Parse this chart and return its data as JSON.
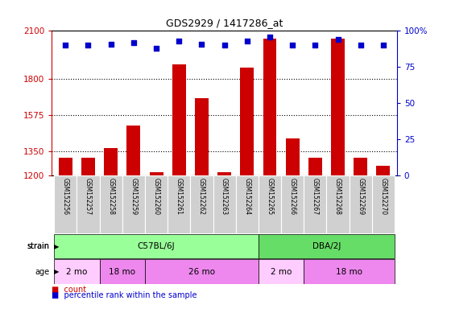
{
  "title": "GDS2929 / 1417286_at",
  "samples": [
    "GSM152256",
    "GSM152257",
    "GSM152258",
    "GSM152259",
    "GSM152260",
    "GSM152261",
    "GSM152262",
    "GSM152263",
    "GSM152264",
    "GSM152265",
    "GSM152266",
    "GSM152267",
    "GSM152268",
    "GSM152269",
    "GSM152270"
  ],
  "counts": [
    1310,
    1310,
    1370,
    1510,
    1220,
    1890,
    1680,
    1220,
    1870,
    2050,
    1430,
    1310,
    2050,
    1310,
    1260
  ],
  "percentile_ranks": [
    90,
    90,
    91,
    92,
    88,
    93,
    91,
    90,
    93,
    96,
    90,
    90,
    94,
    90,
    90
  ],
  "ylim_left": [
    1200,
    2100
  ],
  "yticks_left": [
    1200,
    1350,
    1575,
    1800,
    2100
  ],
  "ylim_right": [
    0,
    100
  ],
  "yticks_right": [
    0,
    25,
    50,
    75,
    100
  ],
  "bar_color": "#cc0000",
  "dot_color": "#0000cc",
  "bg_color": "#ffffff",
  "tick_area_color": "#d0d0d0",
  "strain_groups": [
    {
      "label": "C57BL/6J",
      "start": 0,
      "end": 8,
      "color": "#99ff99"
    },
    {
      "label": "DBA/2J",
      "start": 9,
      "end": 14,
      "color": "#66dd66"
    }
  ],
  "age_groups": [
    {
      "label": "2 mo",
      "start": 0,
      "end": 1,
      "color": "#ffccff"
    },
    {
      "label": "18 mo",
      "start": 2,
      "end": 3,
      "color": "#ee88ee"
    },
    {
      "label": "26 mo",
      "start": 4,
      "end": 8,
      "color": "#ee88ee"
    },
    {
      "label": "2 mo",
      "start": 9,
      "end": 10,
      "color": "#ffccff"
    },
    {
      "label": "18 mo",
      "start": 11,
      "end": 14,
      "color": "#ee88ee"
    }
  ],
  "legend_items": [
    {
      "label": "count",
      "color": "#cc0000"
    },
    {
      "label": "percentile rank within the sample",
      "color": "#0000cc"
    }
  ]
}
